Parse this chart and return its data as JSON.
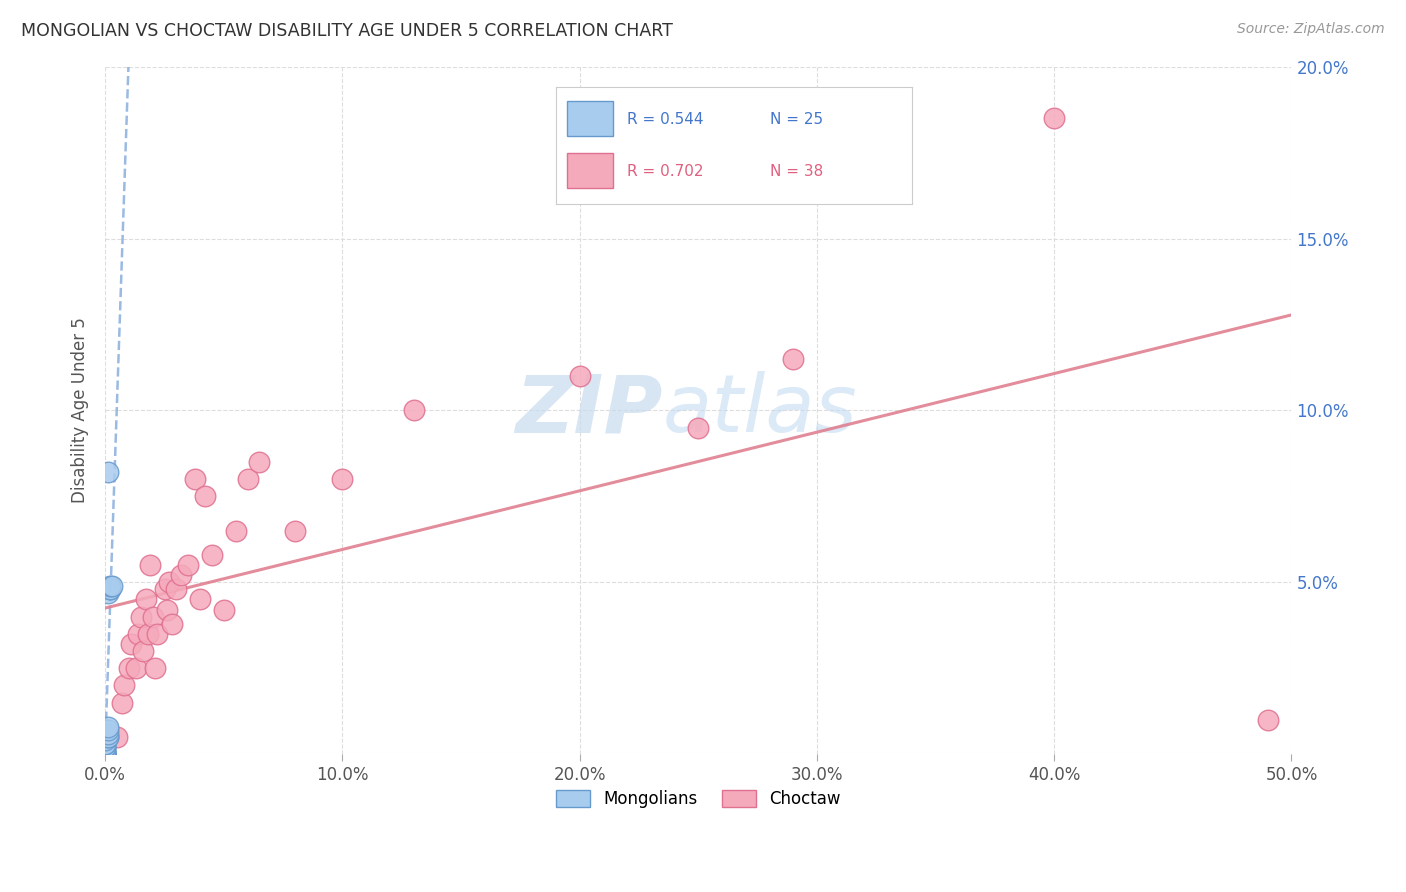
{
  "title": "MONGOLIAN VS CHOCTAW DISABILITY AGE UNDER 5 CORRELATION CHART",
  "source": "Source: ZipAtlas.com",
  "ylabel": "Disability Age Under 5",
  "xlim": [
    0.0,
    0.5
  ],
  "ylim": [
    0.0,
    0.2
  ],
  "xticks": [
    0.0,
    0.1,
    0.2,
    0.3,
    0.4,
    0.5
  ],
  "yticks": [
    0.0,
    0.05,
    0.1,
    0.15,
    0.2
  ],
  "xtick_labels": [
    "0.0%",
    "",
    "",
    "",
    "",
    "50.0%"
  ],
  "mongolian_color": "#A8CCEE",
  "choctaw_color": "#F5AABB",
  "mongolian_edge_color": "#6699CC",
  "choctaw_edge_color": "#E07090",
  "trend_mongolian_color": "#88AEDD",
  "trend_choctaw_color": "#E08090",
  "mongolian_R": 0.544,
  "mongolian_N": 25,
  "choctaw_R": 0.702,
  "choctaw_N": 38,
  "watermark_zip": "ZIP",
  "watermark_atlas": "atlas",
  "background_color": "#ffffff",
  "grid_color": "#dddddd",
  "mongolian_x": [
    0.0,
    0.0,
    0.0,
    0.0,
    0.0,
    0.0,
    0.0,
    0.0,
    0.0,
    0.0,
    0.0,
    0.0,
    0.0,
    0.0,
    0.001,
    0.001,
    0.001,
    0.001,
    0.001,
    0.001,
    0.002,
    0.002,
    0.002,
    0.003,
    0.001
  ],
  "mongolian_y": [
    0.0,
    0.0,
    0.0,
    0.0,
    0.0,
    0.0,
    0.001,
    0.001,
    0.001,
    0.002,
    0.002,
    0.003,
    0.003,
    0.004,
    0.005,
    0.005,
    0.006,
    0.007,
    0.008,
    0.047,
    0.048,
    0.048,
    0.049,
    0.049,
    0.082
  ],
  "choctaw_x": [
    0.005,
    0.007,
    0.008,
    0.01,
    0.011,
    0.013,
    0.014,
    0.015,
    0.016,
    0.017,
    0.018,
    0.019,
    0.02,
    0.021,
    0.022,
    0.025,
    0.026,
    0.027,
    0.028,
    0.03,
    0.032,
    0.035,
    0.038,
    0.04,
    0.042,
    0.045,
    0.05,
    0.055,
    0.06,
    0.065,
    0.08,
    0.1,
    0.13,
    0.2,
    0.25,
    0.29,
    0.4,
    0.49
  ],
  "choctaw_y": [
    0.005,
    0.015,
    0.02,
    0.025,
    0.032,
    0.025,
    0.035,
    0.04,
    0.03,
    0.045,
    0.035,
    0.055,
    0.04,
    0.025,
    0.035,
    0.048,
    0.042,
    0.05,
    0.038,
    0.048,
    0.052,
    0.055,
    0.08,
    0.045,
    0.075,
    0.058,
    0.042,
    0.065,
    0.08,
    0.085,
    0.065,
    0.08,
    0.1,
    0.11,
    0.095,
    0.115,
    0.185,
    0.01
  ]
}
